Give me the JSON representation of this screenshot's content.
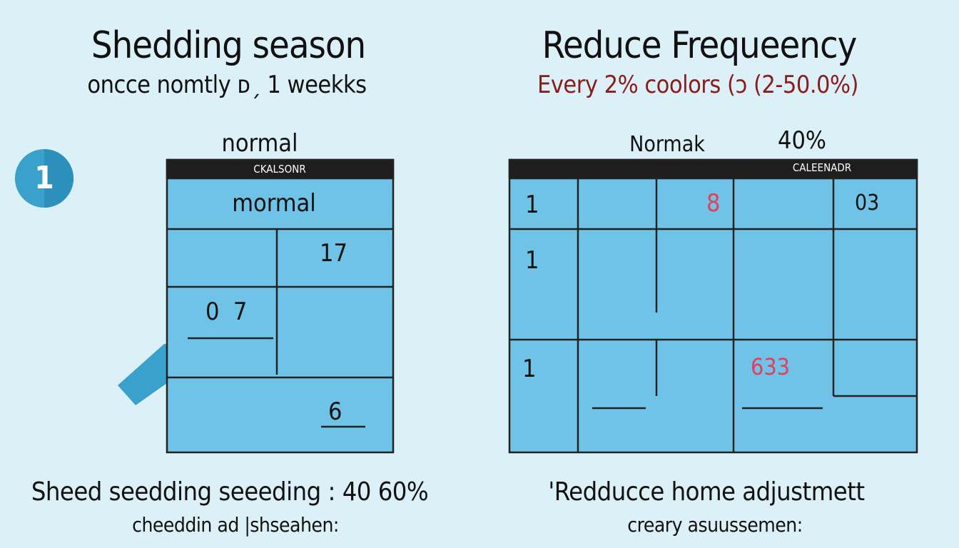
{
  "left": {
    "title": "Shedding season",
    "subtitle": "oncce nomtly ᴅˏ 1 weekks",
    "label": "normal",
    "badge_number": "1",
    "calendar_header": "CKALSONR",
    "cells": {
      "row1": "mormal",
      "row2": "17",
      "row3": "0  7",
      "row4": "6"
    },
    "footer_title": "Sheed seedding seeeding : 40 60%",
    "footer_sub": "cheeddin ad |shseahen:"
  },
  "right": {
    "title": "Reduce Frequeency",
    "subtitle": "Every 2% coolors (ɔ (2-50.0%)",
    "label": "Normak",
    "label_pct": "40%",
    "calendar_header": "CALEENADR",
    "cells": {
      "r1c1": "1",
      "r1c3": "8",
      "r1c5": "03",
      "r2c1": "1",
      "r3c1": "1",
      "r3c4": "633"
    },
    "footer_title": "'Redducce home adjustmett",
    "footer_sub": "creary asuussemen:"
  },
  "colors": {
    "background": "#dcf0f8",
    "cell": "#6fc3e6",
    "accent_red": "#8a1c1c",
    "number_red": "#e0405a",
    "badge": "#3aa0cc"
  }
}
